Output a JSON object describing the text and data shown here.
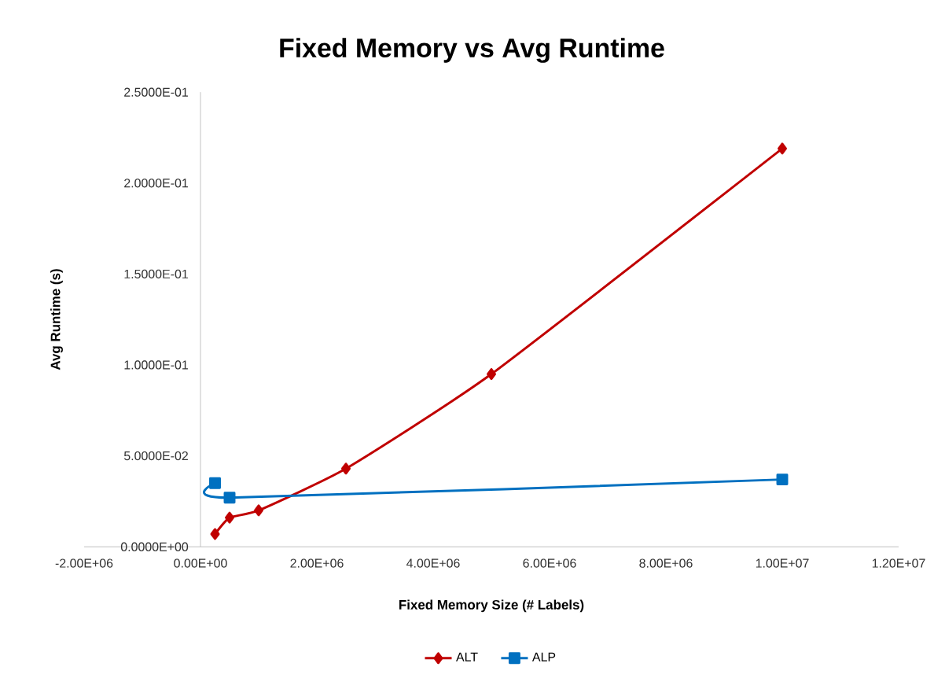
{
  "chart_data": {
    "type": "line",
    "title": "Fixed Memory vs Avg Runtime",
    "xlabel": "Fixed Memory Size (# Labels)",
    "ylabel": "Avg Runtime (s)",
    "xlim": [
      -2000000,
      12000000
    ],
    "xticks": [
      {
        "value": -2000000,
        "label": "-2.00E+06"
      },
      {
        "value": 0,
        "label": "0.00E+00"
      },
      {
        "value": 2000000,
        "label": "2.00E+06"
      },
      {
        "value": 4000000,
        "label": "4.00E+06"
      },
      {
        "value": 6000000,
        "label": "6.00E+06"
      },
      {
        "value": 8000000,
        "label": "8.00E+06"
      },
      {
        "value": 10000000,
        "label": "1.00E+07"
      },
      {
        "value": 12000000,
        "label": "1.20E+07"
      }
    ],
    "ylim": [
      0,
      0.25
    ],
    "yticks": [
      {
        "value": 0,
        "label": "0.0000E+00"
      },
      {
        "value": 0.05,
        "label": "5.0000E-02"
      },
      {
        "value": 0.1,
        "label": "1.0000E-01"
      },
      {
        "value": 0.15,
        "label": "1.5000E-01"
      },
      {
        "value": 0.2,
        "label": "2.0000E-01"
      },
      {
        "value": 0.25,
        "label": "2.5000E-01"
      }
    ],
    "grid": false,
    "legend": "bottom",
    "line_style": "solid",
    "series": [
      {
        "name": "ALT",
        "color": "#c00000",
        "marker": "diamond",
        "x": [
          250000,
          500000,
          1000000,
          2500000,
          5000000,
          10000000
        ],
        "values": [
          0.007,
          0.016,
          0.02,
          0.043,
          0.095,
          0.219
        ]
      },
      {
        "name": "ALP",
        "color": "#0070c0",
        "marker": "square",
        "x": [
          250000,
          500000,
          10000000
        ],
        "values": [
          0.035,
          0.027,
          0.037
        ]
      }
    ]
  }
}
